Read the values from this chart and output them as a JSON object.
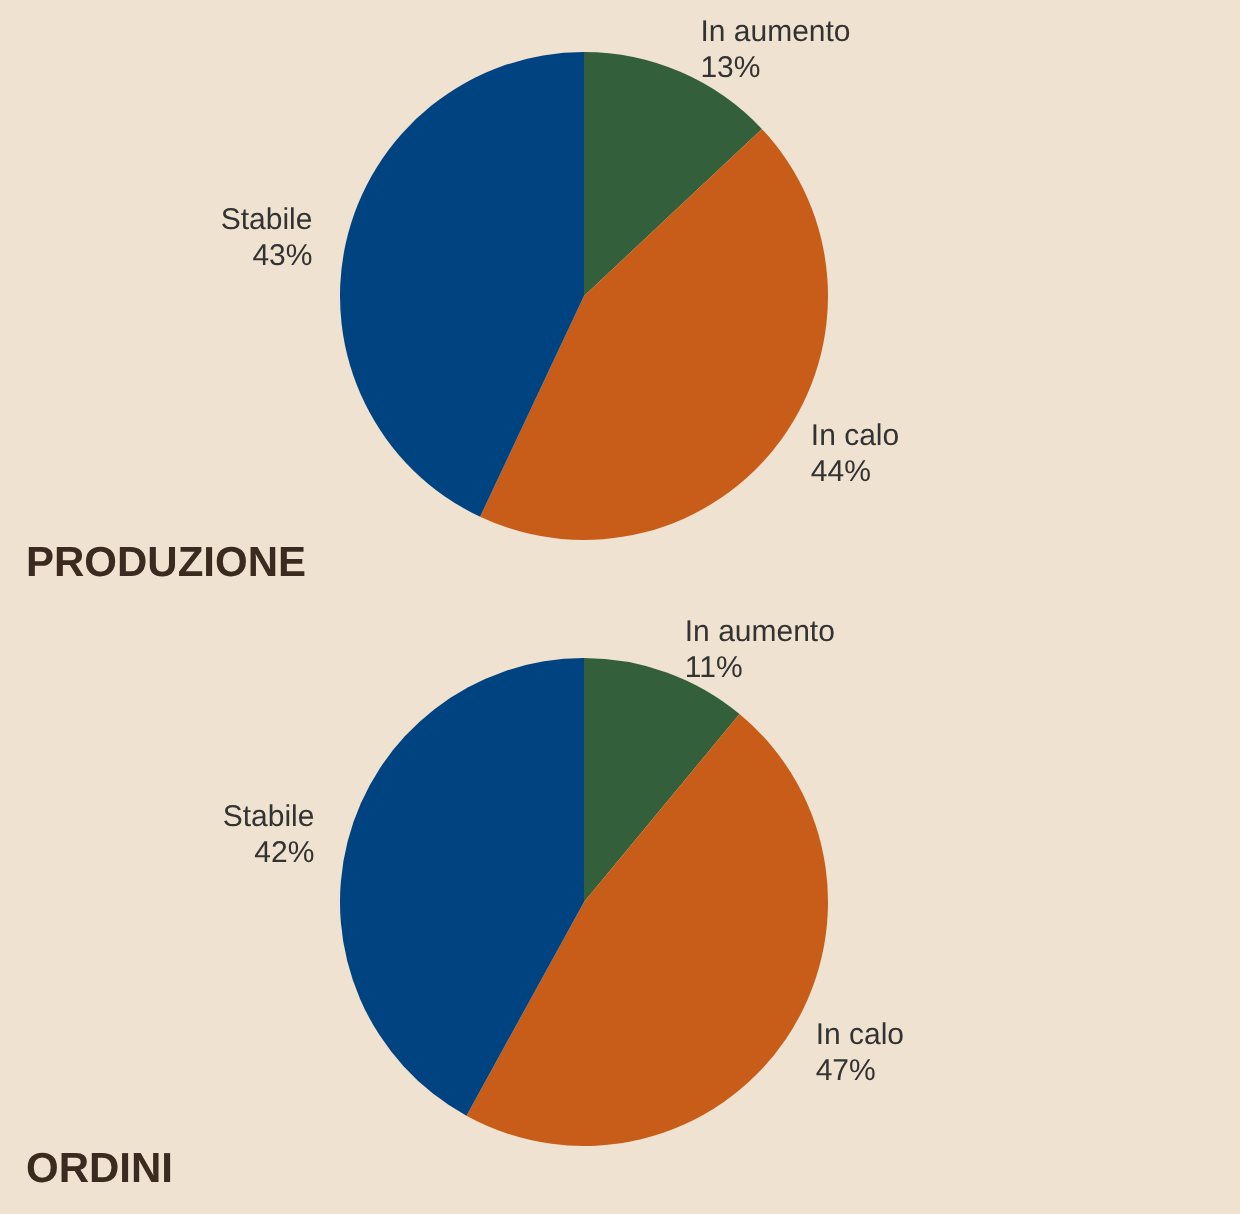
{
  "chart_data": [
    {
      "type": "pie",
      "title": "PRODUZIONE",
      "categories": [
        "In aumento",
        "In calo",
        "Stabile"
      ],
      "values": [
        13,
        44,
        43
      ],
      "value_labels": [
        "13%",
        "44%",
        "43%"
      ],
      "colors": [
        "#33603a",
        "#c85d19",
        "#004381"
      ]
    },
    {
      "type": "pie",
      "title": "ORDINI",
      "categories": [
        "In aumento",
        "In calo",
        "Stabile"
      ],
      "values": [
        11,
        47,
        42
      ],
      "value_labels": [
        "11%",
        "47%",
        "42%"
      ],
      "colors": [
        "#33603a",
        "#c85d19",
        "#004381"
      ]
    }
  ]
}
